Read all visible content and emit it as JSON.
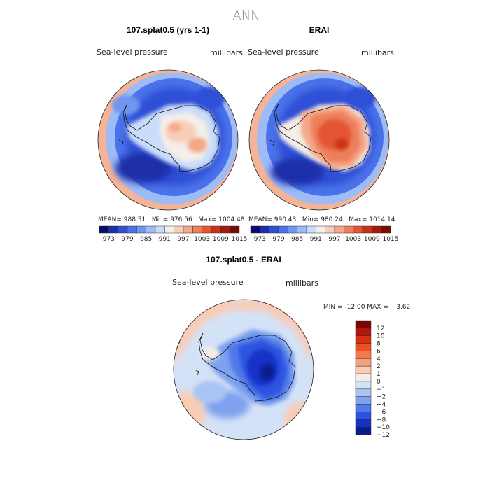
{
  "page_title": "ANN",
  "panels": [
    {
      "title": "107.splat0.5 (yrs 1-1)",
      "variable": "Sea-level pressure",
      "units": "millibars",
      "stats": "MEAN= 988.51   Min= 976.56   Max= 1004.48",
      "ticks": [
        "973",
        "979",
        "985",
        "991",
        "997",
        "1003",
        "1009",
        "1015"
      ]
    },
    {
      "title": "ERAI",
      "variable": "Sea-level pressure",
      "units": "millibars",
      "stats": "MEAN= 990.43   Min= 980.24   Max= 1014.14",
      "ticks": [
        "973",
        "979",
        "985",
        "991",
        "997",
        "1003",
        "1009",
        "1015"
      ]
    }
  ],
  "diff": {
    "title": "107.splat0.5 - ERAI",
    "variable": "Sea-level pressure",
    "units": "millibars",
    "stats": "MIN = -12.00 MAX =    3.62",
    "ticks": [
      "12",
      "10",
      "8",
      "6",
      "4",
      "2",
      "1",
      "0",
      "−1",
      "−2",
      "−4",
      "−6",
      "−8",
      "−10",
      "−12"
    ]
  },
  "colors": {
    "abs_scale": [
      "#0b0a6e",
      "#1a2fa8",
      "#2d4fd6",
      "#4a72ea",
      "#6f96f0",
      "#9dbbf5",
      "#c9dcf9",
      "#f4efe9",
      "#f8cdb7",
      "#f4a889",
      "#ee7f5c",
      "#e35533",
      "#cc3118",
      "#a31a0d",
      "#780c05"
    ],
    "diff_scale": [
      "#7a0505",
      "#b3150b",
      "#d9300f",
      "#ed4f1f",
      "#f27a4a",
      "#f5a27c",
      "#f9ccb4",
      "#f3ede6",
      "#d4e2f7",
      "#a9c4f3",
      "#7ea2ef",
      "#5079ea",
      "#2d52e0",
      "#1232c9",
      "#0a1a8c"
    ]
  }
}
